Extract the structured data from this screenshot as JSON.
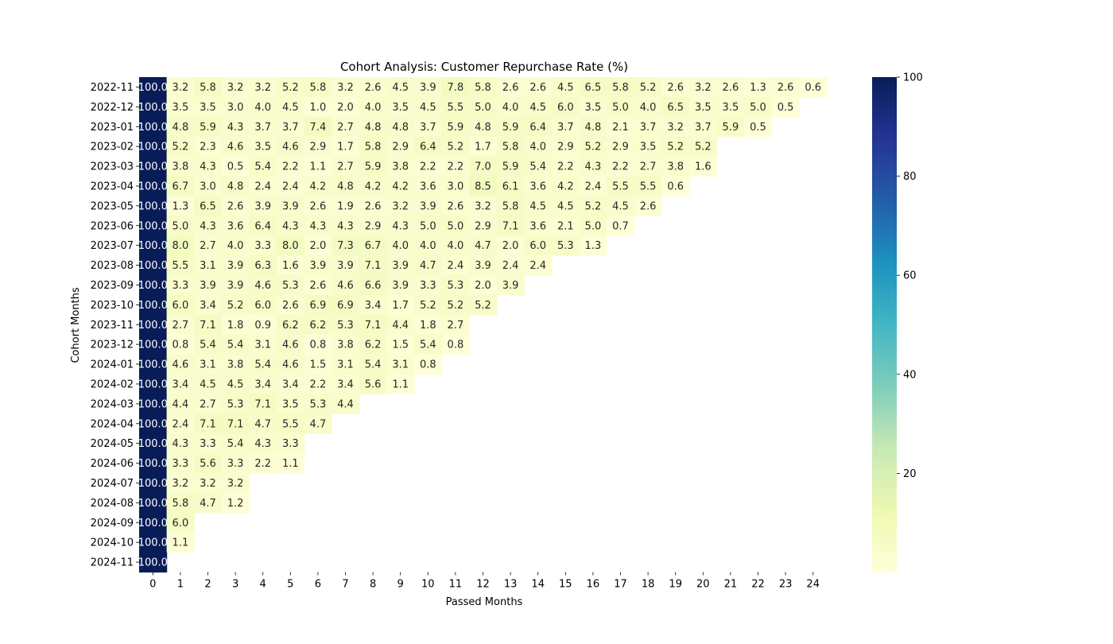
{
  "chart_data": {
    "type": "heatmap",
    "title": "Cohort Analysis: Customer Repurchase Rate (%)",
    "xlabel": "Passed Months",
    "ylabel": "Cohort Months",
    "x_ticks": [
      "0",
      "1",
      "2",
      "3",
      "4",
      "5",
      "6",
      "7",
      "8",
      "9",
      "10",
      "11",
      "12",
      "13",
      "14",
      "15",
      "16",
      "17",
      "18",
      "19",
      "20",
      "21",
      "22",
      "23",
      "24"
    ],
    "rows": [
      "2022-11",
      "2022-12",
      "2023-01",
      "2023-02",
      "2023-03",
      "2023-04",
      "2023-05",
      "2023-06",
      "2023-07",
      "2023-08",
      "2023-09",
      "2023-10",
      "2023-11",
      "2023-12",
      "2024-01",
      "2024-02",
      "2024-03",
      "2024-04",
      "2024-05",
      "2024-06",
      "2024-07",
      "2024-08",
      "2024-09",
      "2024-10",
      "2024-11"
    ],
    "values": [
      [
        100.0,
        3.2,
        5.8,
        3.2,
        3.2,
        5.2,
        5.8,
        3.2,
        2.6,
        4.5,
        3.9,
        7.8,
        5.8,
        2.6,
        2.6,
        4.5,
        6.5,
        5.8,
        5.2,
        2.6,
        3.2,
        2.6,
        1.3,
        2.6,
        0.6
      ],
      [
        100.0,
        3.5,
        3.5,
        3.0,
        4.0,
        4.5,
        1.0,
        2.0,
        4.0,
        3.5,
        4.5,
        5.5,
        5.0,
        4.0,
        4.5,
        6.0,
        3.5,
        5.0,
        4.0,
        6.5,
        3.5,
        3.5,
        5.0,
        0.5
      ],
      [
        100.0,
        4.8,
        5.9,
        4.3,
        3.7,
        3.7,
        7.4,
        2.7,
        4.8,
        4.8,
        3.7,
        5.9,
        4.8,
        5.9,
        6.4,
        3.7,
        4.8,
        2.1,
        3.7,
        3.2,
        3.7,
        5.9,
        0.5
      ],
      [
        100.0,
        5.2,
        2.3,
        4.6,
        3.5,
        4.6,
        2.9,
        1.7,
        5.8,
        2.9,
        6.4,
        5.2,
        1.7,
        5.8,
        4.0,
        2.9,
        5.2,
        2.9,
        3.5,
        5.2,
        5.2
      ],
      [
        100.0,
        3.8,
        4.3,
        0.5,
        5.4,
        2.2,
        1.1,
        2.7,
        5.9,
        3.8,
        2.2,
        2.2,
        7.0,
        5.9,
        5.4,
        2.2,
        4.3,
        2.2,
        2.7,
        3.8,
        1.6
      ],
      [
        100.0,
        6.7,
        3.0,
        4.8,
        2.4,
        2.4,
        4.2,
        4.8,
        4.2,
        4.2,
        3.6,
        3.0,
        8.5,
        6.1,
        3.6,
        4.2,
        2.4,
        5.5,
        5.5,
        0.6
      ],
      [
        100.0,
        1.3,
        6.5,
        2.6,
        3.9,
        3.9,
        2.6,
        1.9,
        2.6,
        3.2,
        3.9,
        2.6,
        3.2,
        5.8,
        4.5,
        4.5,
        5.2,
        4.5,
        2.6
      ],
      [
        100.0,
        5.0,
        4.3,
        3.6,
        6.4,
        4.3,
        4.3,
        4.3,
        2.9,
        4.3,
        5.0,
        5.0,
        2.9,
        7.1,
        3.6,
        2.1,
        5.0,
        0.7
      ],
      [
        100.0,
        8.0,
        2.7,
        4.0,
        3.3,
        8.0,
        2.0,
        7.3,
        6.7,
        4.0,
        4.0,
        4.0,
        4.7,
        2.0,
        6.0,
        5.3,
        1.3
      ],
      [
        100.0,
        5.5,
        3.1,
        3.9,
        6.3,
        1.6,
        3.9,
        3.9,
        7.1,
        3.9,
        4.7,
        2.4,
        3.9,
        2.4,
        2.4
      ],
      [
        100.0,
        3.3,
        3.9,
        3.9,
        4.6,
        5.3,
        2.6,
        4.6,
        6.6,
        3.9,
        3.3,
        5.3,
        2.0,
        3.9
      ],
      [
        100.0,
        6.0,
        3.4,
        5.2,
        6.0,
        2.6,
        6.9,
        6.9,
        3.4,
        1.7,
        5.2,
        5.2,
        5.2
      ],
      [
        100.0,
        2.7,
        7.1,
        1.8,
        0.9,
        6.2,
        6.2,
        5.3,
        7.1,
        4.4,
        1.8,
        2.7
      ],
      [
        100.0,
        0.8,
        5.4,
        5.4,
        3.1,
        4.6,
        0.8,
        3.8,
        6.2,
        1.5,
        5.4,
        0.8
      ],
      [
        100.0,
        4.6,
        3.1,
        3.8,
        5.4,
        4.6,
        1.5,
        3.1,
        5.4,
        3.1,
        0.8
      ],
      [
        100.0,
        3.4,
        4.5,
        4.5,
        3.4,
        3.4,
        2.2,
        3.4,
        5.6,
        1.1
      ],
      [
        100.0,
        4.4,
        2.7,
        5.3,
        7.1,
        3.5,
        5.3,
        4.4
      ],
      [
        100.0,
        2.4,
        7.1,
        7.1,
        4.7,
        5.5,
        4.7
      ],
      [
        100.0,
        4.3,
        3.3,
        5.4,
        4.3,
        3.3
      ],
      [
        100.0,
        3.3,
        5.6,
        3.3,
        2.2,
        1.1
      ],
      [
        100.0,
        3.2,
        3.2,
        3.2
      ],
      [
        100.0,
        5.8,
        4.7,
        1.2
      ],
      [
        100.0,
        6.0
      ],
      [
        100.0,
        1.1
      ],
      [
        100.0
      ]
    ],
    "colorbar": {
      "colormap": "YlGnBu",
      "min": 0,
      "max": 100,
      "ticks": [
        "20",
        "40",
        "60",
        "80",
        "100"
      ]
    },
    "grid": false
  }
}
